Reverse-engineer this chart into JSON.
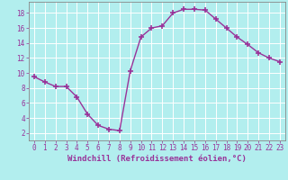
{
  "x": [
    0,
    1,
    2,
    3,
    4,
    5,
    6,
    7,
    8,
    9,
    10,
    11,
    12,
    13,
    14,
    15,
    16,
    17,
    18,
    19,
    20,
    21,
    22,
    23
  ],
  "y": [
    9.5,
    8.8,
    8.2,
    8.2,
    6.8,
    4.5,
    3.0,
    2.5,
    2.3,
    10.3,
    14.8,
    16.0,
    16.3,
    18.0,
    18.5,
    18.5,
    18.4,
    17.2,
    16.0,
    14.8,
    13.8,
    12.7,
    12.0,
    11.5
  ],
  "line_color": "#993399",
  "marker": "+",
  "marker_size": 4,
  "linewidth": 1.0,
  "bg_color": "#b2eeee",
  "grid_color": "#ffffff",
  "xlabel": "Windchill (Refroidissement éolien,°C)",
  "xlabel_color": "#993399",
  "tick_color": "#993399",
  "ylim": [
    1,
    19.5
  ],
  "xlim": [
    -0.5,
    23.5
  ],
  "yticks": [
    2,
    4,
    6,
    8,
    10,
    12,
    14,
    16,
    18
  ],
  "xticks": [
    0,
    1,
    2,
    3,
    4,
    5,
    6,
    7,
    8,
    9,
    10,
    11,
    12,
    13,
    14,
    15,
    16,
    17,
    18,
    19,
    20,
    21,
    22,
    23
  ],
  "xtick_labels": [
    "0",
    "1",
    "2",
    "3",
    "4",
    "5",
    "6",
    "7",
    "8",
    "9",
    "10",
    "11",
    "12",
    "13",
    "14",
    "15",
    "16",
    "17",
    "18",
    "19",
    "20",
    "21",
    "22",
    "23"
  ],
  "font_size": 5.5,
  "xlabel_fontsize": 6.5,
  "spine_color": "#888888"
}
